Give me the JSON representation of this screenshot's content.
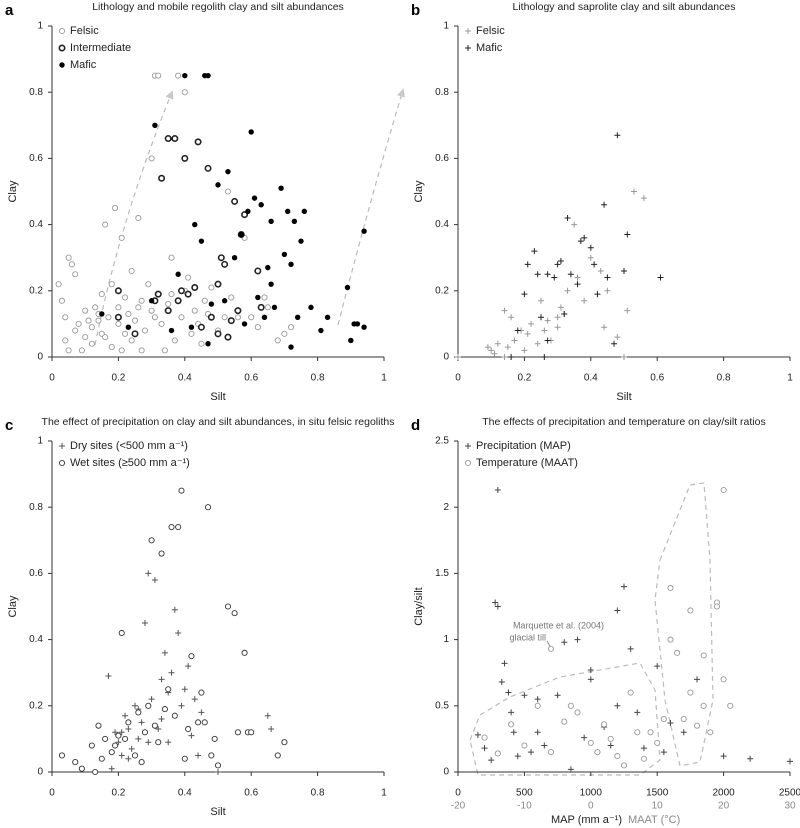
{
  "chart_data": [
    {
      "type": "scatter",
      "panel_label": "a",
      "title": "Lithology and mobile regolith clay and silt abundances",
      "xlabel": "Silt",
      "ylabel": "Clay",
      "xlim": [
        0,
        1
      ],
      "ylim": [
        0,
        1
      ],
      "xticks": [
        0,
        0.2,
        0.4,
        0.6,
        0.8,
        1
      ],
      "yticks": [
        0,
        0.2,
        0.4,
        0.6,
        0.8,
        1
      ],
      "legend": "upper left",
      "series": [
        {
          "name": "Felsic",
          "marker": "open-circle",
          "color": "#999999",
          "x": [
            0.02,
            0.03,
            0.04,
            0.05,
            0.06,
            0.07,
            0.05,
            0.04,
            0.08,
            0.09,
            0.1,
            0.1,
            0.12,
            0.12,
            0.13,
            0.14,
            0.15,
            0.15,
            0.16,
            0.17,
            0.18,
            0.18,
            0.19,
            0.2,
            0.2,
            0.21,
            0.22,
            0.22,
            0.23,
            0.24,
            0.24,
            0.25,
            0.26,
            0.27,
            0.27,
            0.28,
            0.29,
            0.3,
            0.3,
            0.31,
            0.32,
            0.33,
            0.34,
            0.35,
            0.36,
            0.37,
            0.38,
            0.39,
            0.4,
            0.4,
            0.42,
            0.43,
            0.44,
            0.45,
            0.46,
            0.47,
            0.48,
            0.5,
            0.52,
            0.53,
            0.54,
            0.55,
            0.56,
            0.58,
            0.6,
            0.62,
            0.64,
            0.65,
            0.68,
            0.7,
            0.72,
            0.07,
            0.11,
            0.14,
            0.16,
            0.21,
            0.26,
            0.31,
            0.36,
            0.41
          ],
          "values": [
            0.22,
            0.17,
            0.12,
            0.3,
            0.28,
            0.25,
            0.02,
            0.05,
            0.1,
            0.02,
            0.06,
            0.14,
            0.09,
            0.04,
            0.15,
            0.11,
            0.07,
            0.19,
            0.4,
            0.12,
            0.03,
            0.22,
            0.45,
            0.1,
            0.15,
            0.36,
            0.07,
            0.18,
            0.13,
            0.05,
            0.26,
            0.11,
            0.42,
            0.17,
            0.02,
            0.08,
            0.22,
            0.6,
            0.14,
            0.85,
            0.85,
            0.1,
            0.02,
            0.16,
            0.19,
            0.05,
            0.85,
            0.12,
            0.8,
            0.2,
            0.07,
            0.14,
            0.1,
            0.04,
            0.17,
            0.13,
            0.21,
            0.08,
            0.12,
            0.5,
            0.18,
            0.47,
            0.12,
            0.36,
            0.12,
            0.09,
            0.18,
            0.15,
            0.05,
            0.07,
            0.09,
            0.08,
            0.11,
            0.13,
            0.06,
            0.02,
            0.15,
            0.12,
            0.3,
            0.24
          ]
        },
        {
          "name": "Intermediate",
          "marker": "thick-circle",
          "color": "#222222",
          "x": [
            0.2,
            0.2,
            0.25,
            0.31,
            0.32,
            0.33,
            0.35,
            0.37,
            0.38,
            0.39,
            0.4,
            0.41,
            0.43,
            0.44,
            0.47,
            0.48,
            0.5,
            0.5,
            0.51,
            0.52,
            0.53,
            0.55,
            0.56,
            0.57,
            0.58,
            0.62,
            0.63,
            0.35,
            0.45,
            0.54
          ],
          "values": [
            0.2,
            0.12,
            0.07,
            0.17,
            0.19,
            0.54,
            0.66,
            0.66,
            0.17,
            0.2,
            0.6,
            0.19,
            0.21,
            0.65,
            0.57,
            0.12,
            0.07,
            0.22,
            0.3,
            0.28,
            0.06,
            0.47,
            0.14,
            0.37,
            0.43,
            0.26,
            0.15,
            0.14,
            0.09,
            0.11
          ]
        },
        {
          "name": "Mafic",
          "marker": "filled-circle",
          "color": "#000000",
          "x": [
            0.15,
            0.23,
            0.3,
            0.31,
            0.36,
            0.38,
            0.4,
            0.42,
            0.43,
            0.46,
            0.47,
            0.45,
            0.47,
            0.48,
            0.5,
            0.52,
            0.53,
            0.55,
            0.57,
            0.59,
            0.6,
            0.61,
            0.62,
            0.64,
            0.65,
            0.66,
            0.67,
            0.69,
            0.7,
            0.71,
            0.72,
            0.72,
            0.73,
            0.74,
            0.75,
            0.76,
            0.78,
            0.81,
            0.83,
            0.89,
            0.9,
            0.91,
            0.92,
            0.94,
            0.94,
            0.63,
            0.66,
            0.58
          ],
          "values": [
            0.13,
            0.09,
            0.17,
            0.7,
            0.08,
            0.25,
            0.85,
            0.09,
            0.4,
            0.85,
            0.85,
            0.35,
            0.04,
            0.16,
            0.52,
            0.17,
            0.56,
            0.3,
            0.37,
            0.44,
            0.68,
            0.48,
            0.18,
            0.12,
            0.27,
            0.41,
            0.15,
            0.51,
            0.31,
            0.44,
            0.03,
            0.28,
            0.41,
            0.12,
            0.35,
            0.44,
            0.15,
            0.08,
            0.12,
            0.21,
            0.05,
            0.1,
            0.1,
            0.09,
            0.38,
            0.46,
            0.22,
            0.1
          ]
        }
      ]
    },
    {
      "type": "scatter",
      "panel_label": "b",
      "title": "Lithology and saprolite clay and silt abundances",
      "xlabel": "Silt",
      "ylabel": "Clay",
      "xlim": [
        0,
        1
      ],
      "ylim": [
        0,
        1
      ],
      "xticks": [
        0,
        0.2,
        0.4,
        0.6,
        0.8,
        1
      ],
      "yticks": [
        0,
        0.2,
        0.4,
        0.6,
        0.8,
        1
      ],
      "legend": "upper left",
      "series": [
        {
          "name": "Felsic",
          "marker": "plus",
          "color": "#999999",
          "x": [
            0.09,
            0.1,
            0.11,
            0.12,
            0.14,
            0.15,
            0.16,
            0.17,
            0.19,
            0.2,
            0.21,
            0.22,
            0.24,
            0.25,
            0.26,
            0.27,
            0.28,
            0.3,
            0.3,
            0.31,
            0.32,
            0.33,
            0.35,
            0.36,
            0.38,
            0.4,
            0.43,
            0.44,
            0.45,
            0.48,
            0.5,
            0.51,
            0.53,
            0.56,
            0,
            0.14
          ],
          "values": [
            0.03,
            0.02,
            0.01,
            0.04,
            0,
            0.03,
            0.12,
            0.05,
            0.08,
            0.02,
            0.07,
            0.1,
            0.04,
            0.17,
            0.08,
            0.11,
            0.05,
            0.09,
            0.12,
            0.15,
            0.13,
            0.2,
            0.4,
            0.24,
            0.17,
            0.3,
            0.26,
            0.09,
            0.2,
            0.06,
            0,
            0.14,
            0.5,
            0.48,
            0,
            0.14
          ]
        },
        {
          "name": "Mafic",
          "marker": "plus",
          "color": "#222222",
          "x": [
            0.16,
            0.18,
            0.2,
            0.21,
            0.23,
            0.24,
            0.25,
            0.26,
            0.27,
            0.29,
            0.3,
            0.31,
            0.32,
            0.33,
            0.34,
            0.36,
            0.37,
            0.38,
            0.4,
            0.41,
            0.42,
            0.44,
            0.45,
            0.47,
            0.48,
            0.5,
            0.51,
            0.61,
            0.27
          ],
          "values": [
            0,
            0.08,
            0.19,
            0.28,
            0.32,
            0.25,
            0.12,
            0,
            0.25,
            0.24,
            0.28,
            0.29,
            0.13,
            0.42,
            0.25,
            0.22,
            0.35,
            0.36,
            0.33,
            0.28,
            0.19,
            0.46,
            0.24,
            0.04,
            0.67,
            0.26,
            0.37,
            0.24,
            0.05
          ]
        }
      ]
    },
    {
      "type": "scatter",
      "panel_label": "c",
      "title": "The effect of precipitation on clay and silt abundances, in situ felsic regoliths",
      "xlabel": "Silt",
      "ylabel": "Clay",
      "xlim": [
        0,
        1
      ],
      "ylim": [
        0,
        1
      ],
      "xticks": [
        0,
        0.2,
        0.4,
        0.6,
        0.8,
        1
      ],
      "yticks": [
        0,
        0.2,
        0.4,
        0.6,
        0.8,
        1
      ],
      "legend": "upper left",
      "series": [
        {
          "name": "Dry sites (<500 mm a⁻¹)",
          "marker": "plus",
          "color": "#555555",
          "x": [
            0.17,
            0.18,
            0.19,
            0.2,
            0.21,
            0.22,
            0.23,
            0.24,
            0.25,
            0.26,
            0.27,
            0.28,
            0.29,
            0.3,
            0.31,
            0.32,
            0.33,
            0.34,
            0.35,
            0.36,
            0.37,
            0.38,
            0.39,
            0.4,
            0.41,
            0.42,
            0.43,
            0.44,
            0.45,
            0.5,
            0.65,
            0.66,
            0.23,
            0.26,
            0.29,
            0.33,
            0.21,
            0.35
          ],
          "values": [
            0.29,
            0.01,
            0.12,
            0.09,
            0.05,
            0.17,
            0.13,
            0.07,
            0.2,
            0.1,
            0.15,
            0.45,
            0.6,
            0.22,
            0.58,
            0.13,
            0.28,
            0.36,
            0.09,
            0.3,
            0.49,
            0.42,
            0.2,
            0.25,
            0.32,
            0.11,
            0.22,
            0.05,
            0.18,
            0,
            0.17,
            0.13,
            0.04,
            0.19,
            0.09,
            0.16,
            0.12,
            0.24
          ]
        },
        {
          "name": "Wet sites (≥500 mm a⁻¹)",
          "marker": "open-circle",
          "color": "#333333",
          "x": [
            0.03,
            0.07,
            0.09,
            0.12,
            0.13,
            0.14,
            0.15,
            0.16,
            0.18,
            0.19,
            0.21,
            0.22,
            0.23,
            0.25,
            0.26,
            0.27,
            0.28,
            0.3,
            0.31,
            0.32,
            0.33,
            0.34,
            0.35,
            0.36,
            0.37,
            0.38,
            0.39,
            0.4,
            0.41,
            0.42,
            0.44,
            0.45,
            0.46,
            0.47,
            0.48,
            0.49,
            0.53,
            0.55,
            0.56,
            0.58,
            0.59,
            0.6,
            0.68,
            0.7,
            0.5,
            0.2,
            0.29
          ],
          "values": [
            0.05,
            0.03,
            0.01,
            0.08,
            0,
            0.14,
            0.04,
            0.1,
            0.06,
            0.08,
            0.42,
            0.1,
            0.15,
            0.05,
            0.18,
            0.03,
            0.12,
            0.7,
            0.14,
            0.09,
            0.66,
            0.19,
            0.25,
            0.74,
            0.17,
            0.74,
            0.85,
            0.04,
            0.13,
            0.35,
            0.15,
            0.24,
            0.15,
            0.8,
            0.05,
            0.1,
            0.5,
            0.48,
            0.12,
            0.36,
            0.12,
            0.12,
            0.05,
            0.09,
            0.02,
            0.11,
            0.2
          ]
        }
      ]
    },
    {
      "type": "scatter",
      "panel_label": "d",
      "title": "The effects of precipitation and temperature on clay/silt ratios",
      "xlabel": "MAP (mm a⁻¹)",
      "x2label": "MAAT (°C)",
      "ylabel": "Clay/silt",
      "xlim": [
        0,
        2500
      ],
      "x2lim": [
        -20,
        30
      ],
      "ylim": [
        0,
        2.5
      ],
      "xticks": [
        0,
        500,
        1000,
        1500,
        2000,
        2500
      ],
      "x2ticks": [
        -20,
        -10,
        0,
        10,
        20,
        30
      ],
      "yticks": [
        0,
        0.5,
        1,
        1.5,
        2,
        2.5
      ],
      "legend": "upper left",
      "annotation": [
        "Marquette et al. (2004)",
        "glacial till"
      ],
      "series": [
        {
          "name": "Precipitation (MAP)",
          "marker": "plus",
          "color": "#444444",
          "x": [
            150,
            200,
            250,
            280,
            300,
            300,
            330,
            350,
            380,
            400,
            420,
            450,
            500,
            550,
            600,
            650,
            700,
            750,
            800,
            850,
            900,
            950,
            1000,
            1000,
            1050,
            1100,
            1150,
            1200,
            1250,
            1300,
            1350,
            1400,
            1500,
            1550,
            1600,
            1700,
            1800,
            2000,
            2200,
            2500,
            1200,
            600
          ],
          "values": [
            0.28,
            0.18,
            0.09,
            1.28,
            2.13,
            1.25,
            0.68,
            0.82,
            0.6,
            0.45,
            0.3,
            0.12,
            0.58,
            0.15,
            0.55,
            0.2,
            0.15,
            0.58,
            0.98,
            0.02,
            1,
            0.26,
            0.77,
            0.7,
            0.15,
            0.34,
            0.2,
            1.22,
            1.4,
            0.93,
            0.45,
            0.18,
            0.8,
            0.15,
            0.37,
            0.3,
            0.7,
            0.12,
            0.1,
            0.08,
            0.5,
            0.3
          ]
        },
        {
          "name": "Temperature (MAAT)",
          "marker": "open-circle",
          "color": "#999999",
          "axis": "x2",
          "x": [
            -16,
            -14,
            -12,
            -10,
            -8,
            -6,
            -4,
            -2,
            0,
            2,
            4,
            6,
            7,
            8,
            10,
            12,
            12,
            13,
            14,
            15,
            15,
            16,
            17,
            17,
            18,
            19,
            19,
            20,
            20,
            21,
            -6,
            -3,
            1,
            3,
            5,
            9,
            11
          ],
          "values": [
            0.26,
            0.14,
            0.36,
            0.2,
            0.5,
            0.15,
            0.38,
            0.45,
            0.22,
            0.36,
            0.12,
            0.6,
            0.3,
            0.1,
            0.22,
            1.39,
            1,
            0.9,
            0.4,
            1.22,
            0.6,
            0.35,
            0.88,
            0.5,
            0.3,
            1.28,
            1.25,
            0.7,
            2.13,
            0.5,
            0.93,
            0.5,
            0.15,
            0.25,
            0.05,
            0.3,
            0.4
          ]
        }
      ]
    }
  ]
}
